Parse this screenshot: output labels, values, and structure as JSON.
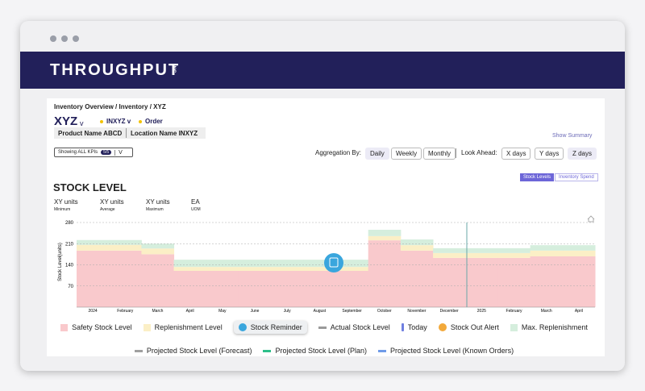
{
  "header": {
    "brand": "THROUGHPUT",
    "brand_suffix": "INC"
  },
  "breadcrumb": "Inventory Overview / Inventory / XYZ",
  "item": {
    "code": "XYZ",
    "code_caret": "v",
    "tags": [
      "INXYZ v",
      "Order"
    ],
    "product": "Product Name ABCD",
    "location": "Location Name INXYZ"
  },
  "show_summary": "Show Summary",
  "kpi_filter": {
    "label": "Showing ALL KPIs",
    "badge": "5/5",
    "caret": "V"
  },
  "aggregation": {
    "label": "Aggregation By:",
    "options": [
      "Daily",
      "Weekly",
      "Monthly"
    ]
  },
  "look_ahead": {
    "label": "Look Ahead:",
    "options": [
      "X days",
      "Y days",
      "Z days"
    ]
  },
  "view_toggle": [
    "Stock Levels",
    "Inventory Spend"
  ],
  "section_title": "STOCK LEVEL",
  "stats": [
    {
      "value": "XY units",
      "label": "Minimum"
    },
    {
      "value": "XY units",
      "label": "Average"
    },
    {
      "value": "XY units",
      "label": "Maximum"
    },
    {
      "value": "EA",
      "label": "UOM"
    }
  ],
  "chart_data": {
    "type": "stacked-step-area",
    "y_label": "Stock Level(units)",
    "categories": [
      "2024",
      "February",
      "March",
      "April",
      "May",
      "June",
      "July",
      "August",
      "September",
      "October",
      "November",
      "December",
      "2025",
      "February",
      "March",
      "April"
    ],
    "series": [
      {
        "name": "Safety Stock Level",
        "color": "#f9c9cc",
        "values": [
          187,
          187,
          175,
          120,
          120,
          120,
          120,
          120,
          120,
          221,
          187,
          163,
          163,
          163,
          168,
          168
        ]
      },
      {
        "name": "Replenishment Level",
        "color": "#fbefc6",
        "values": [
          19,
          19,
          19,
          13,
          13,
          13,
          13,
          13,
          13,
          14,
          18,
          16,
          16,
          16,
          19,
          19
        ]
      },
      {
        "name": "Max. Replenishment",
        "color": "#d5eedd",
        "values": [
          16,
          16,
          16,
          24,
          24,
          24,
          24,
          24,
          24,
          21,
          19,
          16,
          16,
          16,
          18,
          18
        ]
      }
    ],
    "other_legend": [
      {
        "name": "Stock Reminder",
        "color": "#3aa6dd"
      },
      {
        "name": "Actual Stock Level",
        "color": "#9a9a9a"
      },
      {
        "name": "Today",
        "color": "#6f7fe0"
      },
      {
        "name": "Stock Out Alert",
        "color": "#f2a93b"
      },
      {
        "name": "Projected Stock Level (Forecast)",
        "color": "#a0a0a0"
      },
      {
        "name": "Projected Stock Level (Plan)",
        "color": "#2ebf8a"
      },
      {
        "name": "Projected Stock Level (Known Orders)",
        "color": "#6f9be8"
      }
    ],
    "ylim": [
      0,
      280
    ],
    "yticks": [
      70,
      140,
      210,
      280
    ],
    "grid": true
  }
}
